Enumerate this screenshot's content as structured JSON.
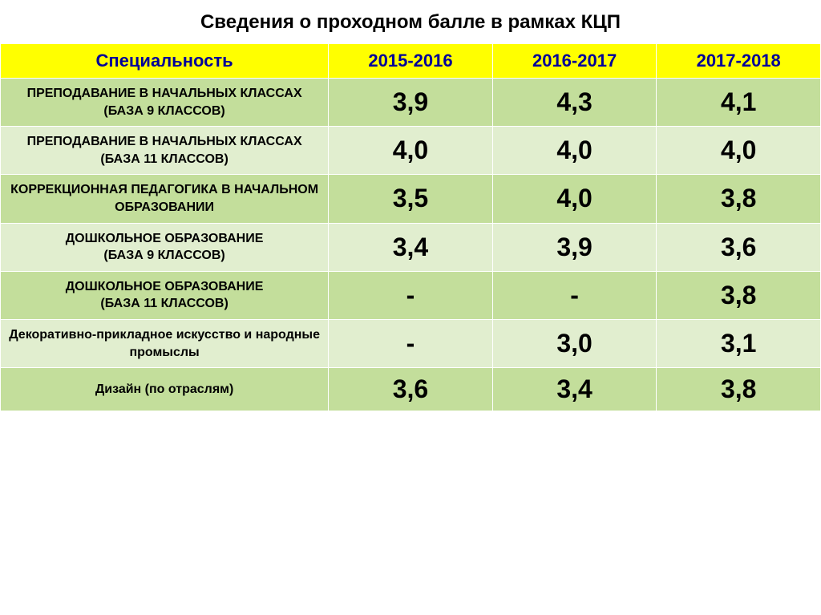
{
  "title": "Сведения о проходном балле в рамках КЦП",
  "title_fontsize": 24,
  "table": {
    "header_bg": "#ffff00",
    "header_text_color": "#000099",
    "header_fontsize": 22,
    "row_colors": [
      "#c3de9b",
      "#e1eecf"
    ],
    "spec_fontsize": 16,
    "value_fontsize": 32,
    "border_color": "#ffffff",
    "columns": [
      "Специальность",
      "2015-2016",
      "2016-2017",
      "2017-2018"
    ],
    "rows": [
      {
        "spec": "ПРЕПОДАВАНИЕ В НАЧАЛЬНЫХ КЛАССАХ\n(БАЗА 9 КЛАССОВ)",
        "values": [
          "3,9",
          "4,3",
          "4,1"
        ]
      },
      {
        "spec": "ПРЕПОДАВАНИЕ В НАЧАЛЬНЫХ КЛАССАХ\n(БАЗА 11 КЛАССОВ)",
        "values": [
          "4,0",
          "4,0",
          "4,0"
        ]
      },
      {
        "spec": "КОРРЕКЦИОННАЯ ПЕДАГОГИКА В НАЧАЛЬНОМ ОБРАЗОВАНИИ",
        "values": [
          "3,5",
          "4,0",
          "3,8"
        ]
      },
      {
        "spec": "ДОШКОЛЬНОЕ ОБРАЗОВАНИЕ\n(БАЗА 9 КЛАССОВ)",
        "values": [
          "3,4",
          "3,9",
          "3,6"
        ]
      },
      {
        "spec": "ДОШКОЛЬНОЕ ОБРАЗОВАНИЕ\n(БАЗА 11 КЛАССОВ)",
        "values": [
          "-",
          "-",
          "3,8"
        ]
      },
      {
        "spec": "Декоративно-прикладное искусство и народные промыслы",
        "values": [
          "-",
          "3,0",
          "3,1"
        ]
      },
      {
        "spec": "Дизайн (по отраслям)",
        "values": [
          "3,6",
          "3,4",
          "3,8"
        ]
      }
    ]
  }
}
